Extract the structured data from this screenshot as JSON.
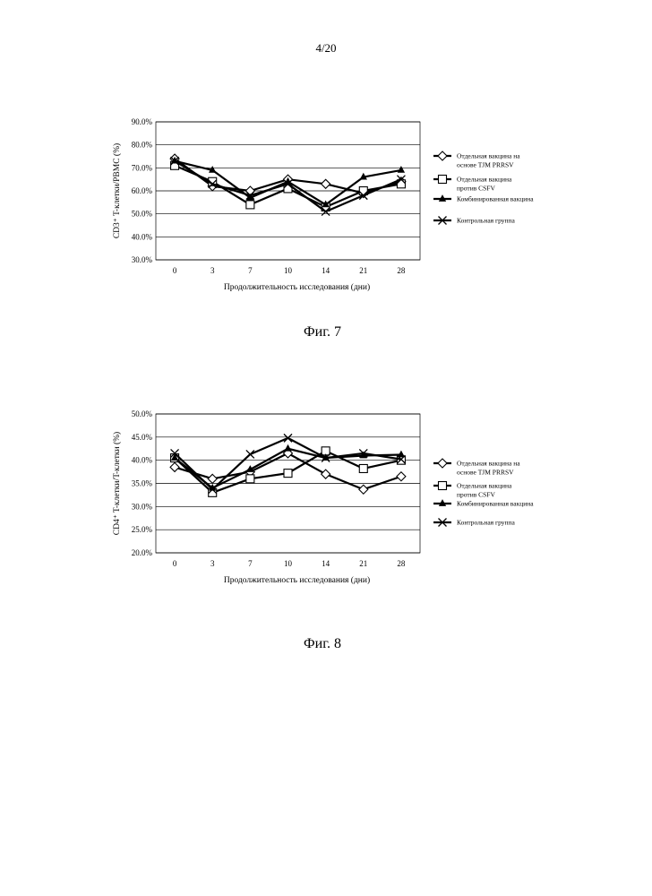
{
  "page": {
    "number": "4/20"
  },
  "figures": [
    {
      "caption": "Фиг. 7"
    },
    {
      "caption": "Фиг. 8"
    }
  ],
  "chart_data": [
    {
      "type": "line",
      "xlabel": "Продолжительность исследования (дни)",
      "ylabel": "CD3⁺ T-клетки/PBMC (%)",
      "categories": [
        "0",
        "3",
        "7",
        "10",
        "14",
        "21",
        "28"
      ],
      "y_ticks": [
        "30.0%",
        "40.0%",
        "50.0%",
        "60.0%",
        "70.0%",
        "80.0%",
        "90.0%"
      ],
      "ylim": [
        30,
        90
      ],
      "grid": "horizontal",
      "legend": "right",
      "series": [
        {
          "name": "Отдельная вакцина на основе TJM PRRSV",
          "marker": "diamond",
          "values": [
            74,
            62,
            60,
            65,
            63,
            59,
            64
          ]
        },
        {
          "name": "Отдельная вакцина против CSFV",
          "marker": "square",
          "values": [
            71,
            64,
            54,
            61,
            53,
            60,
            63
          ]
        },
        {
          "name": "Комбинированная вакцина",
          "marker": "triangle",
          "values": [
            73,
            69,
            57,
            64,
            54,
            66,
            69
          ]
        },
        {
          "name": "Контрольная группа",
          "marker": "x",
          "values": [
            73,
            63,
            58,
            63,
            51,
            58,
            65
          ]
        }
      ]
    },
    {
      "type": "line",
      "xlabel": "Продолжительность исследования (дни)",
      "ylabel": "CD4⁺ T-клетки/T-клетки (%)",
      "categories": [
        "0",
        "3",
        "7",
        "10",
        "14",
        "21",
        "28"
      ],
      "y_ticks": [
        "20.0%",
        "25.0%",
        "30.0%",
        "35.0%",
        "40.0%",
        "45.0%",
        "50.0%"
      ],
      "ylim": [
        20,
        50
      ],
      "grid": "horizontal",
      "legend": "right",
      "series": [
        {
          "name": "Отдельная вакцина на основе TJM PRRSV",
          "marker": "diamond",
          "values": [
            38.5,
            36,
            37.5,
            41.5,
            37,
            33.7,
            36.5
          ]
        },
        {
          "name": "Отдельная вакцина против CSFV",
          "marker": "square",
          "values": [
            40.5,
            33,
            36,
            37.2,
            42,
            38.2,
            40
          ]
        },
        {
          "name": "Комбинированная вакцина",
          "marker": "triangle",
          "values": [
            40.5,
            34,
            38,
            42.5,
            40.5,
            41,
            41.2
          ]
        },
        {
          "name": "Контрольная группа",
          "marker": "x",
          "values": [
            41.5,
            33.7,
            41.3,
            44.8,
            40.5,
            41.5,
            40.2
          ]
        }
      ]
    }
  ]
}
